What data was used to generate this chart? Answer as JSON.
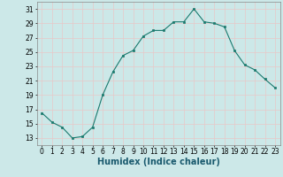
{
  "x": [
    0,
    1,
    2,
    3,
    4,
    5,
    6,
    7,
    8,
    9,
    10,
    11,
    12,
    13,
    14,
    15,
    16,
    17,
    18,
    19,
    20,
    21,
    22,
    23
  ],
  "y": [
    16.5,
    15.2,
    14.5,
    13.0,
    13.2,
    14.5,
    19.0,
    22.2,
    24.5,
    25.2,
    27.2,
    28.0,
    28.0,
    29.2,
    29.2,
    31.0,
    29.2,
    29.0,
    28.5,
    25.2,
    23.2,
    22.5,
    21.2,
    20.0
  ],
  "xlabel": "Humidex (Indice chaleur)",
  "xlim": [
    -0.5,
    23.5
  ],
  "ylim": [
    12,
    32
  ],
  "yticks": [
    13,
    15,
    17,
    19,
    21,
    23,
    25,
    27,
    29,
    31
  ],
  "xticks": [
    0,
    1,
    2,
    3,
    4,
    5,
    6,
    7,
    8,
    9,
    10,
    11,
    12,
    13,
    14,
    15,
    16,
    17,
    18,
    19,
    20,
    21,
    22,
    23
  ],
  "line_color": "#1a7a6e",
  "marker_color": "#1a7a6e",
  "bg_color": "#cce8e8",
  "grid_color": "#e8c8c8",
  "label_fontsize": 7,
  "tick_fontsize": 5.5
}
